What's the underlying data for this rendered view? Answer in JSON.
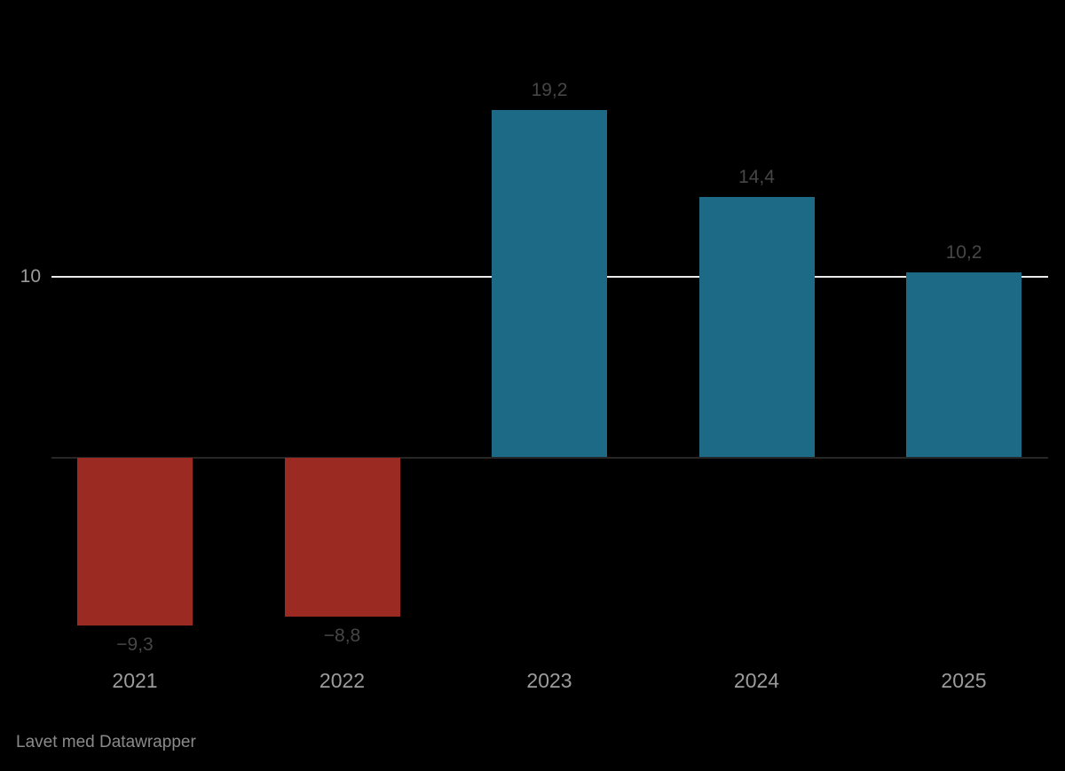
{
  "chart_data": {
    "type": "bar",
    "categories": [
      "2021",
      "2022",
      "2023",
      "2024",
      "2025"
    ],
    "values": [
      -9.3,
      -8.8,
      19.2,
      14.4,
      10.2
    ],
    "value_labels": [
      "−9,3",
      "−8,8",
      "19,2",
      "14,4",
      "10,2"
    ],
    "title": "",
    "xlabel": "",
    "ylabel": "",
    "ylim": [
      -10,
      20
    ],
    "gridlines": [
      {
        "value": 10,
        "label": "10"
      }
    ],
    "baseline_value": 0,
    "legend": "none",
    "grid": "single horizontal gridline at y=10, dark baseline at y=0",
    "colors": {
      "positive_bar": "#1d6a86",
      "negative_bar": "#9a2a22"
    }
  },
  "colors": {
    "background": "#000000",
    "gridline": "#eaeaea",
    "baseline": "#262626",
    "value_label": "#464646",
    "category_label": "#9c9c9c",
    "tick_label": "#9c9c9c",
    "attribution": "#8a8a8a"
  },
  "attribution": "Lavet med Datawrapper"
}
